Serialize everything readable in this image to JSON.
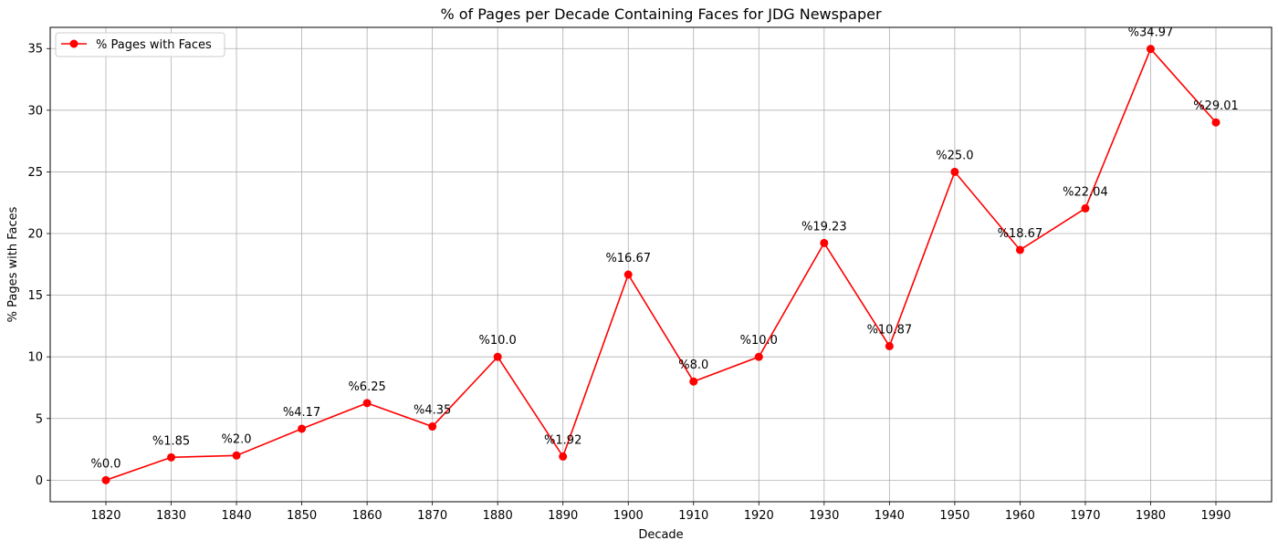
{
  "chart_data": {
    "type": "line",
    "title": "% of Pages per Decade Containing Faces for JDG Newspaper",
    "xlabel": "Decade",
    "ylabel": "% Pages with Faces",
    "categories": [
      "1820",
      "1830",
      "1840",
      "1850",
      "1860",
      "1870",
      "1880",
      "1890",
      "1900",
      "1910",
      "1920",
      "1930",
      "1940",
      "1950",
      "1960",
      "1970",
      "1980",
      "1990"
    ],
    "series": [
      {
        "name": "% Pages with Faces",
        "values": [
          0.0,
          1.85,
          2.0,
          4.17,
          6.25,
          4.35,
          10.0,
          1.92,
          16.67,
          8.0,
          10.0,
          19.23,
          10.87,
          25.0,
          18.67,
          22.04,
          34.97,
          29.01
        ],
        "labels": [
          "%0.0",
          "%1.85",
          "%2.0",
          "%4.17",
          "%6.25",
          "%4.35",
          "%10.0",
          "%1.92",
          "%16.67",
          "%8.0",
          "%10.0",
          "%19.23",
          "%10.87",
          "%25.0",
          "%18.67",
          "%22.04",
          "%34.97",
          "%29.01"
        ],
        "color": "#ff0000",
        "marker": "circle"
      }
    ],
    "y_ticks": [
      "0",
      "5",
      "10",
      "15",
      "20",
      "25",
      "30",
      "35"
    ],
    "ylim": [
      -1.75,
      36.72
    ],
    "grid": true,
    "legend": "top-left"
  }
}
